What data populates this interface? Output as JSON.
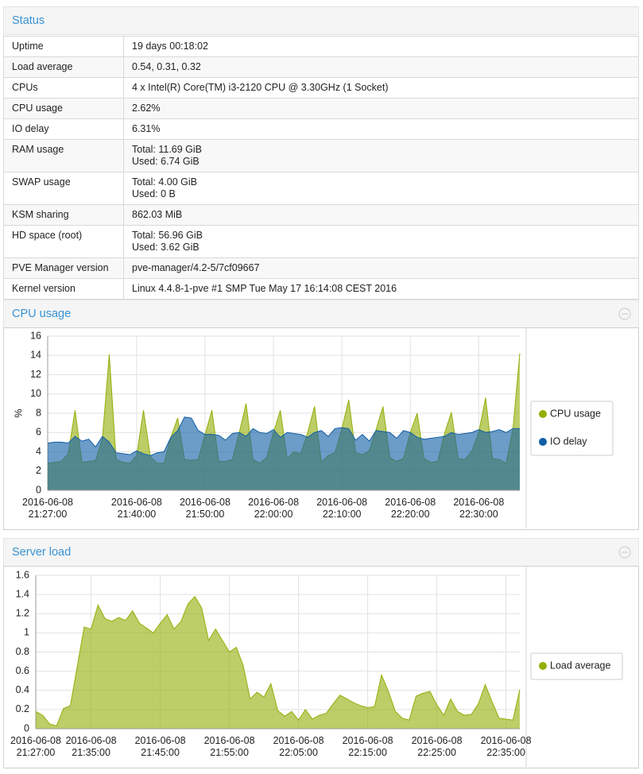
{
  "status": {
    "title": "Status",
    "rows": [
      {
        "label": "Uptime",
        "value": [
          "19 days 00:18:02"
        ]
      },
      {
        "label": "Load average",
        "value": [
          "0.54, 0.31, 0.32"
        ]
      },
      {
        "label": "CPUs",
        "value": [
          "4 x Intel(R) Core(TM) i3-2120 CPU @ 3.30GHz (1 Socket)"
        ]
      },
      {
        "label": "CPU usage",
        "value": [
          "2.62%"
        ]
      },
      {
        "label": "IO delay",
        "value": [
          "6.31%"
        ]
      },
      {
        "label": "RAM usage",
        "value": [
          "Total: 11.69 GiB",
          "Used: 6.74 GiB"
        ]
      },
      {
        "label": "SWAP usage",
        "value": [
          "Total: 4.00 GiB",
          "Used: 0 B"
        ]
      },
      {
        "label": "KSM sharing",
        "value": [
          "862.03 MiB"
        ]
      },
      {
        "label": "HD space (root)",
        "value": [
          "Total: 56.96 GiB",
          "Used: 3.62 GiB"
        ]
      },
      {
        "label": "PVE Manager version",
        "value": [
          "pve-manager/4.2-5/7cf09667"
        ]
      },
      {
        "label": "Kernel version",
        "value": [
          "Linux 4.4.8-1-pve #1 SMP Tue May 17 16:14:08 CEST 2016"
        ]
      }
    ]
  },
  "chart_data": [
    {
      "type": "area",
      "title": "CPU usage",
      "y_label": "%",
      "grid": true,
      "legend": "right",
      "x": [
        "2016-06-08 21:27:00",
        "2016-06-08 21:28:00",
        "2016-06-08 21:29:00",
        "2016-06-08 21:30:00",
        "2016-06-08 21:31:00",
        "2016-06-08 21:32:00",
        "2016-06-08 21:33:00",
        "2016-06-08 21:34:00",
        "2016-06-08 21:35:00",
        "2016-06-08 21:36:00",
        "2016-06-08 21:37:00",
        "2016-06-08 21:38:00",
        "2016-06-08 21:39:00",
        "2016-06-08 21:40:00",
        "2016-06-08 21:41:00",
        "2016-06-08 21:42:00",
        "2016-06-08 21:43:00",
        "2016-06-08 21:44:00",
        "2016-06-08 21:45:00",
        "2016-06-08 21:46:00",
        "2016-06-08 21:47:00",
        "2016-06-08 21:48:00",
        "2016-06-08 21:49:00",
        "2016-06-08 21:50:00",
        "2016-06-08 21:51:00",
        "2016-06-08 21:52:00",
        "2016-06-08 21:53:00",
        "2016-06-08 21:54:00",
        "2016-06-08 21:55:00",
        "2016-06-08 21:56:00",
        "2016-06-08 21:57:00",
        "2016-06-08 21:58:00",
        "2016-06-08 21:59:00",
        "2016-06-08 22:00:00",
        "2016-06-08 22:01:00",
        "2016-06-08 22:02:00",
        "2016-06-08 22:03:00",
        "2016-06-08 22:04:00",
        "2016-06-08 22:05:00",
        "2016-06-08 22:06:00",
        "2016-06-08 22:07:00",
        "2016-06-08 22:08:00",
        "2016-06-08 22:09:00",
        "2016-06-08 22:10:00",
        "2016-06-08 22:11:00",
        "2016-06-08 22:12:00",
        "2016-06-08 22:13:00",
        "2016-06-08 22:14:00",
        "2016-06-08 22:15:00",
        "2016-06-08 22:16:00",
        "2016-06-08 22:17:00",
        "2016-06-08 22:18:00",
        "2016-06-08 22:19:00",
        "2016-06-08 22:20:00",
        "2016-06-08 22:21:00",
        "2016-06-08 22:22:00",
        "2016-06-08 22:23:00",
        "2016-06-08 22:24:00",
        "2016-06-08 22:25:00",
        "2016-06-08 22:26:00",
        "2016-06-08 22:27:00",
        "2016-06-08 22:28:00",
        "2016-06-08 22:29:00",
        "2016-06-08 22:30:00",
        "2016-06-08 22:31:00",
        "2016-06-08 22:32:00",
        "2016-06-08 22:33:00",
        "2016-06-08 22:34:00",
        "2016-06-08 22:35:00",
        "2016-06-08 22:36:00"
      ],
      "series": [
        {
          "name": "CPU usage",
          "color": "#94ae0a",
          "values": [
            2.8,
            2.9,
            3.0,
            3.8,
            8.3,
            2.9,
            3.0,
            3.1,
            5.4,
            14.1,
            3.2,
            2.9,
            2.8,
            3.6,
            8.3,
            3.5,
            2.8,
            2.8,
            5.5,
            7.5,
            3.2,
            3.1,
            3.2,
            5.8,
            8.3,
            3.0,
            3.0,
            3.2,
            6.0,
            9.0,
            3.2,
            2.8,
            3.4,
            6.0,
            8.3,
            3.3,
            4.0,
            3.8,
            6.0,
            8.7,
            2.9,
            3.6,
            3.9,
            6.4,
            9.4,
            3.9,
            3.7,
            4.1,
            6.3,
            8.7,
            3.4,
            3.0,
            3.3,
            6.0,
            8.0,
            3.3,
            2.9,
            3.0,
            5.9,
            8.1,
            3.3,
            3.2,
            4.1,
            6.0,
            9.6,
            3.3,
            3.2,
            2.8,
            6.4,
            14.2
          ]
        },
        {
          "name": "IO delay",
          "color": "#115fa6",
          "values": [
            4.9,
            5.0,
            5.0,
            4.9,
            5.6,
            5.1,
            5.3,
            4.5,
            5.6,
            5.0,
            3.9,
            3.8,
            3.7,
            4.1,
            3.8,
            3.6,
            3.9,
            4.0,
            5.5,
            6.2,
            7.6,
            7.5,
            6.2,
            5.8,
            5.8,
            5.7,
            5.2,
            5.9,
            6.0,
            5.6,
            6.4,
            6.0,
            5.9,
            6.3,
            5.5,
            6.0,
            5.9,
            5.8,
            5.5,
            6.0,
            6.2,
            5.6,
            6.4,
            6.5,
            6.4,
            5.2,
            5.8,
            5.1,
            6.2,
            6.1,
            6.0,
            5.4,
            6.2,
            6.0,
            5.5,
            5.3,
            5.4,
            5.5,
            5.6,
            6.0,
            5.8,
            5.9,
            6.0,
            6.3,
            6.0,
            6.1,
            6.3,
            6.0,
            6.4,
            6.4
          ]
        }
      ],
      "xlim": [
        "2016-06-08 21:27:00",
        "2016-06-08 22:36:00"
      ],
      "xticks": [
        "2016-06-08 21:27:00",
        "2016-06-08 21:40:00",
        "2016-06-08 21:50:00",
        "2016-06-08 22:00:00",
        "2016-06-08 22:10:00",
        "2016-06-08 22:20:00",
        "2016-06-08 22:30:00"
      ],
      "ylim": [
        0,
        16
      ],
      "yticks": [
        0,
        2,
        4,
        6,
        8,
        10,
        12,
        14,
        16
      ]
    },
    {
      "type": "area",
      "title": "Server load",
      "grid": true,
      "legend": "right",
      "x": [
        "2016-06-08 21:27:00",
        "2016-06-08 21:28:00",
        "2016-06-08 21:29:00",
        "2016-06-08 21:30:00",
        "2016-06-08 21:31:00",
        "2016-06-08 21:32:00",
        "2016-06-08 21:33:00",
        "2016-06-08 21:34:00",
        "2016-06-08 21:35:00",
        "2016-06-08 21:36:00",
        "2016-06-08 21:37:00",
        "2016-06-08 21:38:00",
        "2016-06-08 21:39:00",
        "2016-06-08 21:40:00",
        "2016-06-08 21:41:00",
        "2016-06-08 21:42:00",
        "2016-06-08 21:43:00",
        "2016-06-08 21:44:00",
        "2016-06-08 21:45:00",
        "2016-06-08 21:46:00",
        "2016-06-08 21:47:00",
        "2016-06-08 21:48:00",
        "2016-06-08 21:49:00",
        "2016-06-08 21:50:00",
        "2016-06-08 21:51:00",
        "2016-06-08 21:52:00",
        "2016-06-08 21:53:00",
        "2016-06-08 21:54:00",
        "2016-06-08 21:55:00",
        "2016-06-08 21:56:00",
        "2016-06-08 21:57:00",
        "2016-06-08 21:58:00",
        "2016-06-08 21:59:00",
        "2016-06-08 22:00:00",
        "2016-06-08 22:01:00",
        "2016-06-08 22:02:00",
        "2016-06-08 22:03:00",
        "2016-06-08 22:04:00",
        "2016-06-08 22:05:00",
        "2016-06-08 22:06:00",
        "2016-06-08 22:07:00",
        "2016-06-08 22:08:00",
        "2016-06-08 22:09:00",
        "2016-06-08 22:10:00",
        "2016-06-08 22:11:00",
        "2016-06-08 22:12:00",
        "2016-06-08 22:13:00",
        "2016-06-08 22:14:00",
        "2016-06-08 22:15:00",
        "2016-06-08 22:16:00",
        "2016-06-08 22:17:00",
        "2016-06-08 22:18:00",
        "2016-06-08 22:19:00",
        "2016-06-08 22:20:00",
        "2016-06-08 22:21:00",
        "2016-06-08 22:22:00",
        "2016-06-08 22:23:00",
        "2016-06-08 22:24:00",
        "2016-06-08 22:25:00",
        "2016-06-08 22:26:00",
        "2016-06-08 22:27:00",
        "2016-06-08 22:28:00",
        "2016-06-08 22:29:00",
        "2016-06-08 22:30:00",
        "2016-06-08 22:31:00",
        "2016-06-08 22:32:00",
        "2016-06-08 22:33:00",
        "2016-06-08 22:34:00",
        "2016-06-08 22:35:00",
        "2016-06-08 22:36:00",
        "2016-06-08 22:37:00"
      ],
      "series": [
        {
          "name": "Load average",
          "color": "#94ae0a",
          "values": [
            0.18,
            0.14,
            0.05,
            0.03,
            0.21,
            0.24,
            0.65,
            1.06,
            1.04,
            1.29,
            1.15,
            1.12,
            1.16,
            1.13,
            1.23,
            1.1,
            1.05,
            1.0,
            1.1,
            1.19,
            1.04,
            1.12,
            1.3,
            1.38,
            1.26,
            0.92,
            1.04,
            0.92,
            0.8,
            0.85,
            0.66,
            0.31,
            0.38,
            0.33,
            0.47,
            0.19,
            0.13,
            0.18,
            0.09,
            0.2,
            0.1,
            0.14,
            0.16,
            0.26,
            0.35,
            0.31,
            0.27,
            0.24,
            0.22,
            0.23,
            0.56,
            0.39,
            0.18,
            0.11,
            0.09,
            0.34,
            0.37,
            0.39,
            0.25,
            0.14,
            0.31,
            0.18,
            0.14,
            0.15,
            0.26,
            0.46,
            0.28,
            0.11,
            0.1,
            0.09,
            0.41
          ]
        }
      ],
      "xlim": [
        "2016-06-08 21:27:00",
        "2016-06-08 22:37:00"
      ],
      "xticks": [
        "2016-06-08 21:27:00",
        "2016-06-08 21:35:00",
        "2016-06-08 21:45:00",
        "2016-06-08 21:55:00",
        "2016-06-08 22:05:00",
        "2016-06-08 22:15:00",
        "2016-06-08 22:25:00",
        "2016-06-08 22:35:00"
      ],
      "ylim": [
        0,
        1.6
      ],
      "yticks": [
        0,
        0.2,
        0.4,
        0.6,
        0.8,
        1,
        1.2,
        1.4,
        1.6
      ]
    }
  ]
}
